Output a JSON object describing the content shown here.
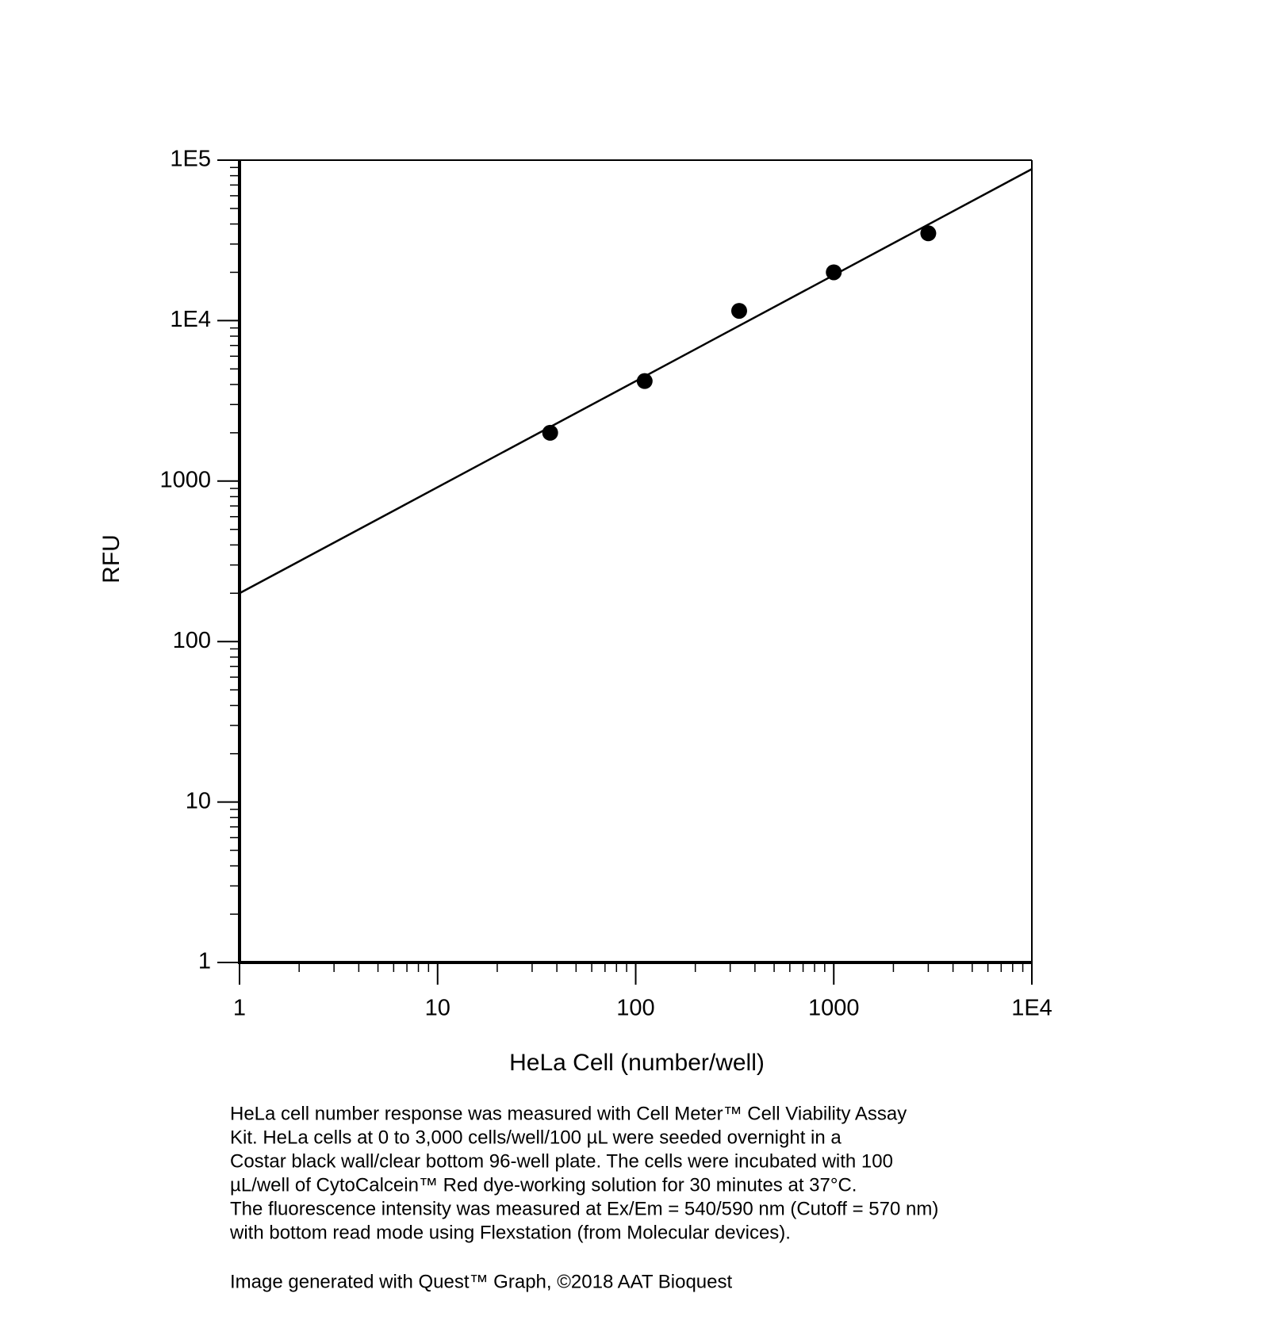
{
  "chart_data": {
    "type": "scatter",
    "log_x": true,
    "log_y": true,
    "x_label": "HeLa Cell (number/well)",
    "y_label": "RFU",
    "xlim": [
      1,
      10000
    ],
    "ylim": [
      1,
      100000
    ],
    "xticks": [
      1,
      10,
      100,
      1000,
      {
        "value": 10000,
        "label": "1E4"
      }
    ],
    "yticks": [
      1,
      10,
      100,
      1000,
      {
        "value": 10000,
        "label": "1E4"
      },
      {
        "value": 100000,
        "label": "1E5"
      }
    ],
    "series": [
      {
        "kind": "points",
        "color": "#000000",
        "x": [
          37,
          111,
          333,
          1000,
          3000
        ],
        "values": [
          2000,
          4200,
          11500,
          20000,
          35000
        ]
      },
      {
        "kind": "line",
        "color": "#000000",
        "x": [
          1,
          10000
        ],
        "values": [
          200,
          88000
        ]
      }
    ],
    "caption": [
      "HeLa cell number response was measured with Cell Meter™ Cell Viability Assay",
      "Kit. HeLa cells at 0 to 3,000 cells/well/100 µL were seeded overnight in a",
      "Costar black wall/clear bottom 96-well plate. The cells were incubated with 100",
      "µL/well of CytoCalcein™ Red dye-working solution for 30 minutes at 37°C.",
      "The fluorescence intensity was measured at Ex/Em = 540/590 nm (Cutoff = 570 nm)",
      "with bottom read mode using Flexstation (from Molecular devices)."
    ],
    "footer": "Image generated with Quest™ Graph, ©2018 AAT Bioquest"
  }
}
